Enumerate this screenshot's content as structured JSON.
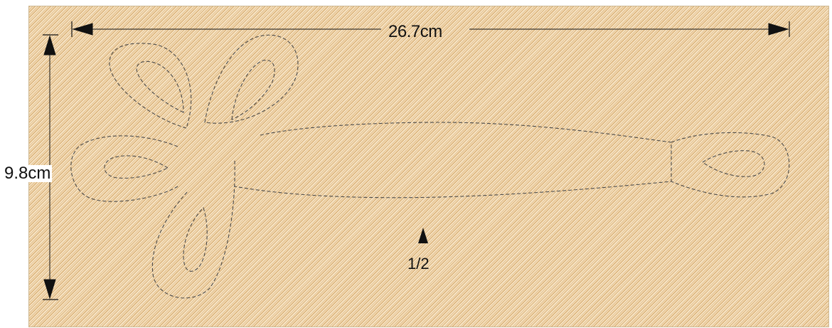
{
  "pattern": {
    "width_dimension": "26.7cm",
    "height_dimension": "9.8cm",
    "fold_mark": "1/2"
  },
  "colors": {
    "fabric_base": "#f3dfbe",
    "fabric_weave": "#c88c3c",
    "stitch_line": "#444444",
    "dimension_line": "#111111"
  }
}
